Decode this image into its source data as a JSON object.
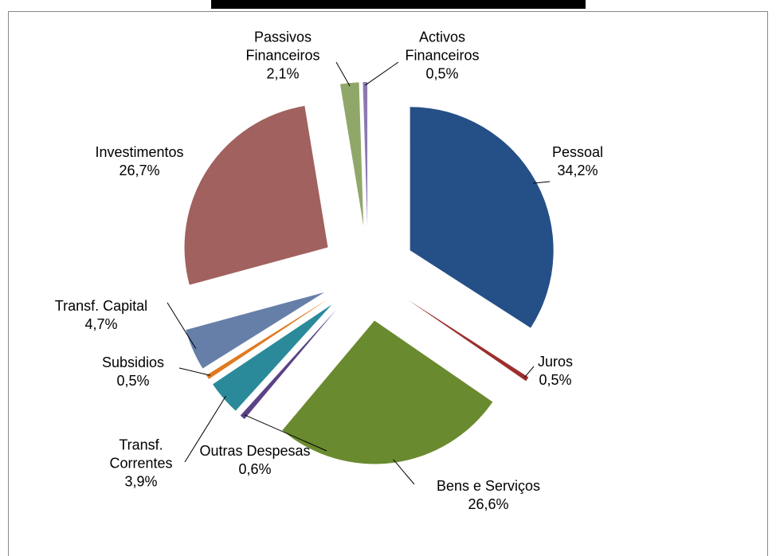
{
  "chart_data": {
    "type": "pie",
    "categories": [
      "Pessoal",
      "Juros",
      "Bens e Serviços",
      "Outras Despesas",
      "Transf. Correntes",
      "Subsidios",
      "Transf. Capital",
      "Investimentos",
      "Passivos Financeiros",
      "Activos Financeiros"
    ],
    "values": [
      34.2,
      0.5,
      26.6,
      0.6,
      3.9,
      0.5,
      4.7,
      26.7,
      2.1,
      0.5
    ],
    "value_labels": [
      "34,2%",
      "0,5%",
      "26,6%",
      "0,6%",
      "3,9%",
      "0,5%",
      "4,7%",
      "26,7%",
      "2,1%",
      "0,5%"
    ],
    "colors": [
      "#254f87",
      "#9c2f2c",
      "#6a8a2f",
      "#5b4286",
      "#2a8a9a",
      "#e07a1f",
      "#667fa8",
      "#a0615f",
      "#8fa86a",
      "#8a7ab0"
    ]
  }
}
